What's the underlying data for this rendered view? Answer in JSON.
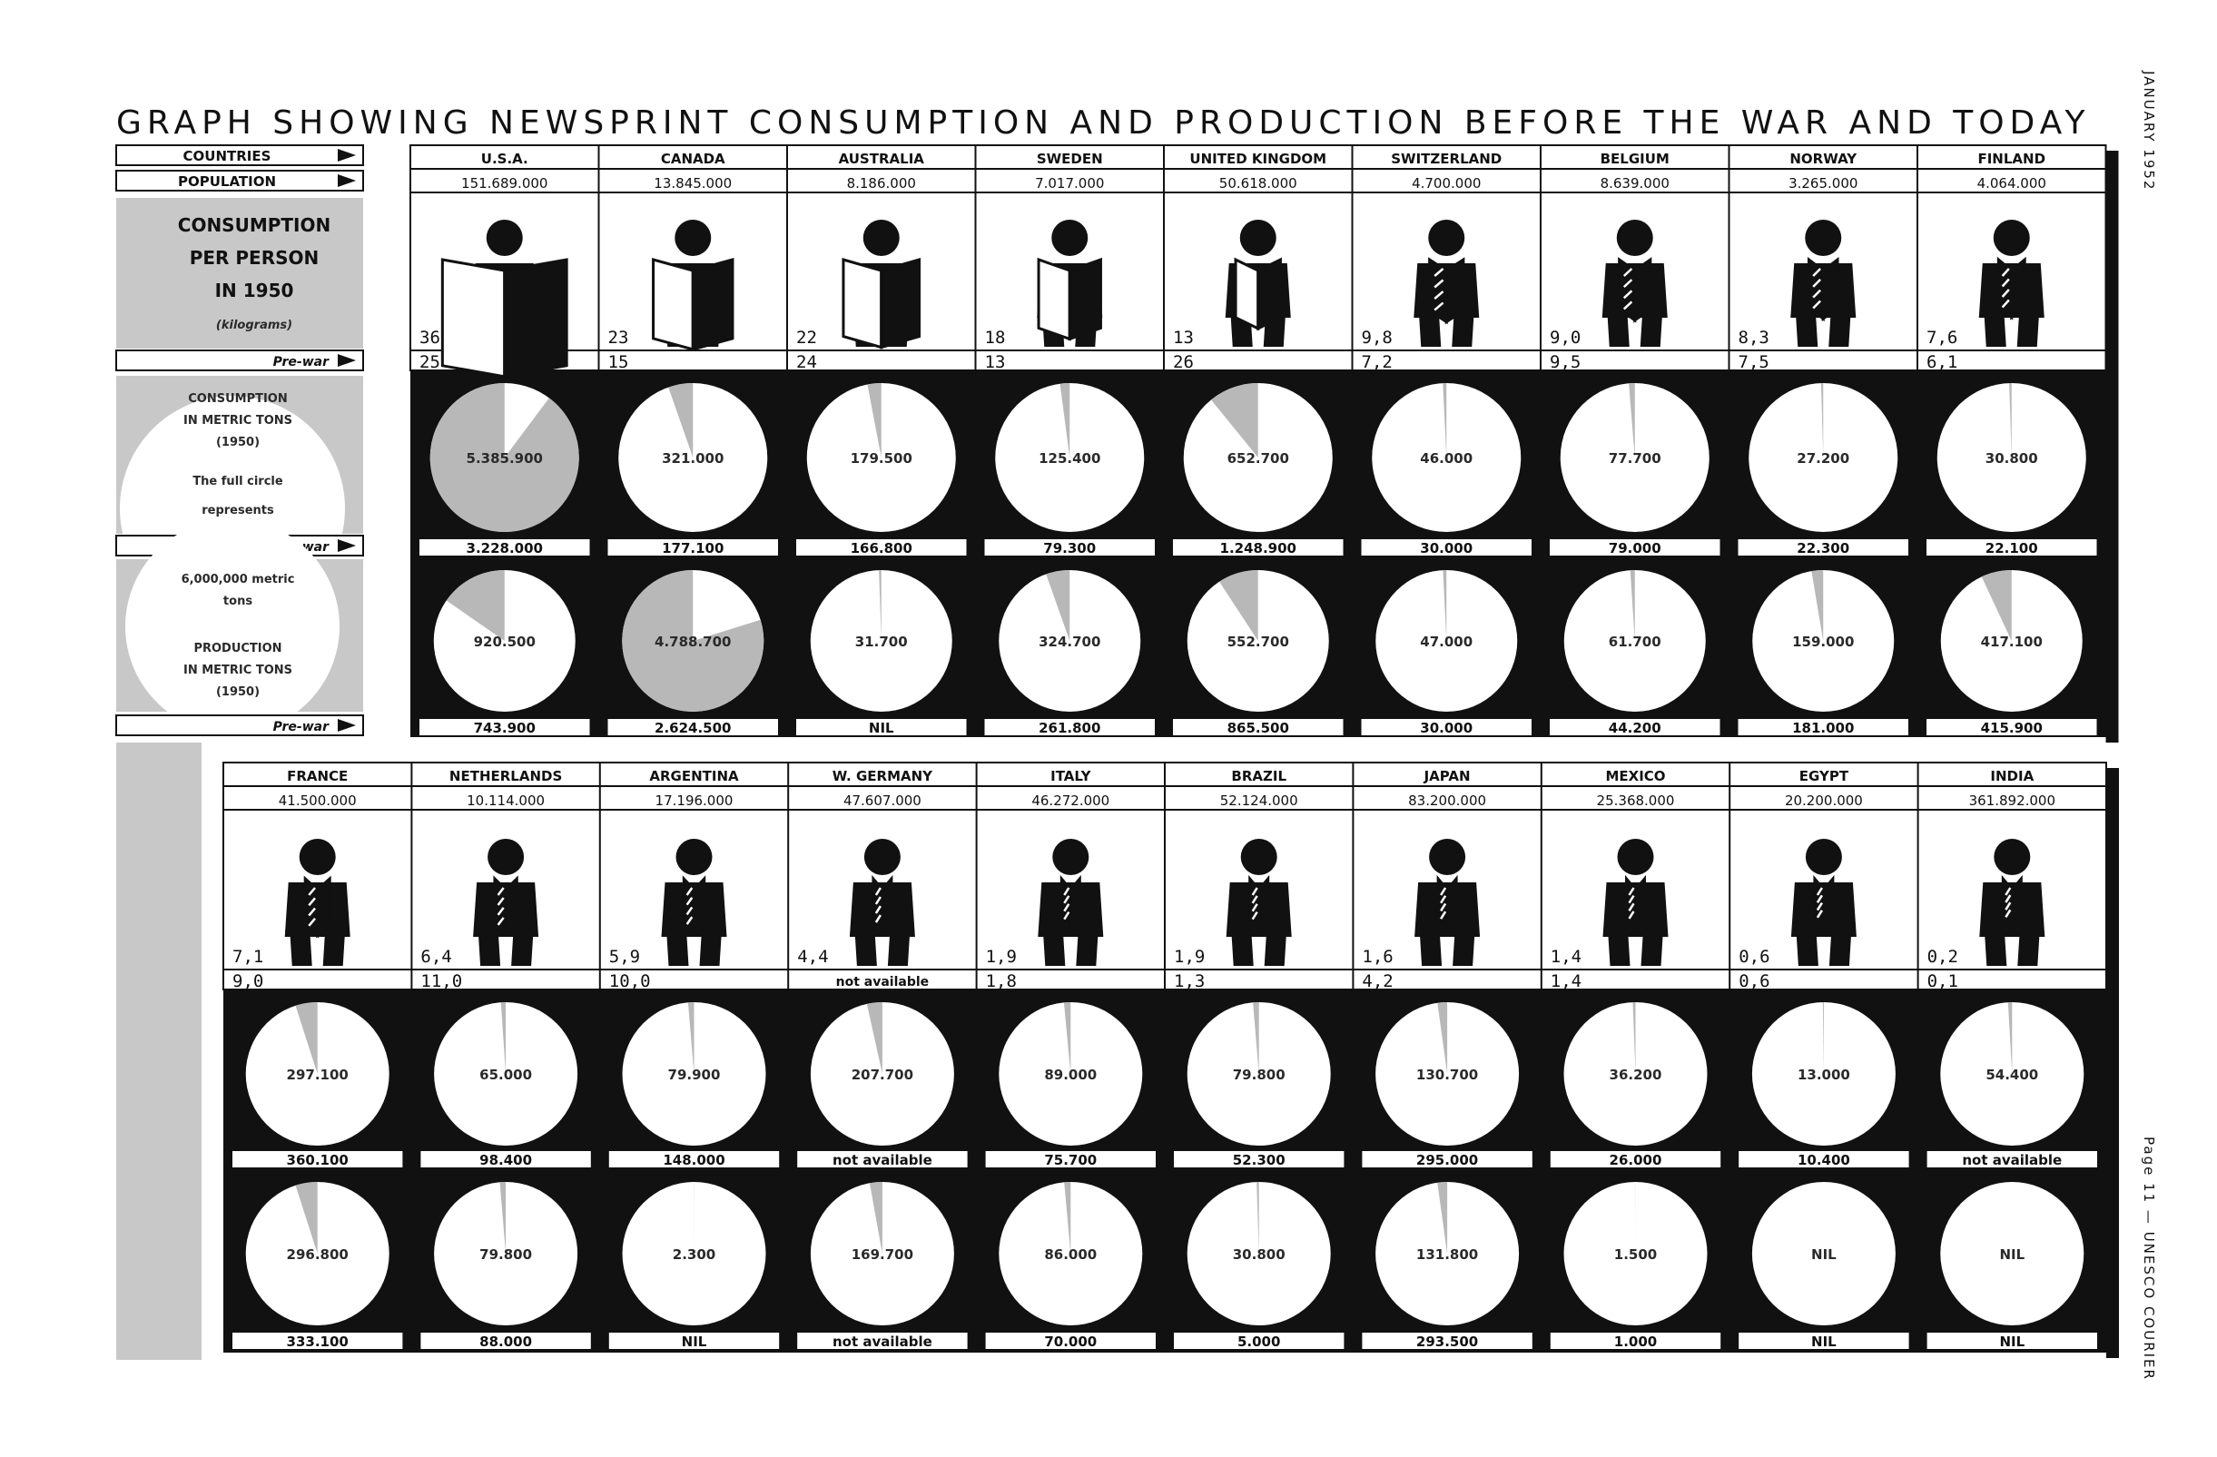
{
  "page": {
    "title": "GRAPH SHOWING NEWSPRINT CONSUMPTION AND PRODUCTION BEFORE THE WAR AND TODAY",
    "side_top": "JANUARY 1952",
    "side_bottom": "Page 11 — UNESCO COURIER"
  },
  "legend": {
    "countries": "COUNTRIES",
    "population": "POPULATION",
    "consumption_per_person": [
      "CONSUMPTION",
      "PER PERSON",
      "IN 1950"
    ],
    "kilograms": "(kilograms)",
    "prewar": "Pre-war",
    "consumption_tons": [
      "CONSUMPTION",
      "IN METRIC TONS",
      "(1950)"
    ],
    "full_circle": [
      "The full circle",
      "represents",
      "6,000,000 metric",
      "tons"
    ],
    "production_tons": [
      "PRODUCTION",
      "IN METRIC TONS",
      "(1950)"
    ]
  },
  "colors": {
    "ink": "#111111",
    "paper": "#ffffff",
    "pie_fill": "#b8b8b8",
    "legend_grey": "#c8c8c8"
  },
  "chart_data": {
    "type": "pie",
    "title": "GRAPH SHOWING NEWSPRINT CONSUMPTION AND PRODUCTION BEFORE THE WAR AND TODAY",
    "full_circle_tons": 6000000,
    "rows": [
      {
        "countries": [
          {
            "name": "U.S.A.",
            "population": "151.689.000",
            "kg_1950": "36",
            "kg_prewar": "25",
            "consumption": "5.385.900",
            "consumption_value": 5385900,
            "consumption_prewar": "3.228.000",
            "production": "920.500",
            "production_value": 920500,
            "production_prewar": "743.900"
          },
          {
            "name": "CANADA",
            "population": "13.845.000",
            "kg_1950": "23",
            "kg_prewar": "15",
            "consumption": "321.000",
            "consumption_value": 321000,
            "consumption_prewar": "177.100",
            "production": "4.788.700",
            "production_value": 4788700,
            "production_prewar": "2.624.500"
          },
          {
            "name": "AUSTRALIA",
            "population": "8.186.000",
            "kg_1950": "22",
            "kg_prewar": "24",
            "consumption": "179.500",
            "consumption_value": 179500,
            "consumption_prewar": "166.800",
            "production": "31.700",
            "production_value": 31700,
            "production_prewar": "NIL"
          },
          {
            "name": "SWEDEN",
            "population": "7.017.000",
            "kg_1950": "18",
            "kg_prewar": "13",
            "consumption": "125.400",
            "consumption_value": 125400,
            "consumption_prewar": "79.300",
            "production": "324.700",
            "production_value": 324700,
            "production_prewar": "261.800"
          },
          {
            "name": "UNITED KINGDOM",
            "population": "50.618.000",
            "kg_1950": "13",
            "kg_prewar": "26",
            "consumption": "652.700",
            "consumption_value": 652700,
            "consumption_prewar": "1.248.900",
            "production": "552.700",
            "production_value": 552700,
            "production_prewar": "865.500"
          },
          {
            "name": "SWITZERLAND",
            "population": "4.700.000",
            "kg_1950": "9,8",
            "kg_prewar": "7,2",
            "consumption": "46.000",
            "consumption_value": 46000,
            "consumption_prewar": "30.000",
            "production": "47.000",
            "production_value": 47000,
            "production_prewar": "30.000"
          },
          {
            "name": "BELGIUM",
            "population": "8.639.000",
            "kg_1950": "9,0",
            "kg_prewar": "9,5",
            "consumption": "77.700",
            "consumption_value": 77700,
            "consumption_prewar": "79.000",
            "production": "61.700",
            "production_value": 61700,
            "production_prewar": "44.200"
          },
          {
            "name": "NORWAY",
            "population": "3.265.000",
            "kg_1950": "8,3",
            "kg_prewar": "7,5",
            "consumption": "27.200",
            "consumption_value": 27200,
            "consumption_prewar": "22.300",
            "production": "159.000",
            "production_value": 159000,
            "production_prewar": "181.000"
          },
          {
            "name": "FINLAND",
            "population": "4.064.000",
            "kg_1950": "7,6",
            "kg_prewar": "6,1",
            "consumption": "30.800",
            "consumption_value": 30800,
            "consumption_prewar": "22.100",
            "production": "417.100",
            "production_value": 417100,
            "production_prewar": "415.900"
          }
        ]
      },
      {
        "countries": [
          {
            "name": "FRANCE",
            "population": "41.500.000",
            "kg_1950": "7,1",
            "kg_prewar": "9,0",
            "consumption": "297.100",
            "consumption_value": 297100,
            "consumption_prewar": "360.100",
            "production": "296.800",
            "production_value": 296800,
            "production_prewar": "333.100"
          },
          {
            "name": "NETHERLANDS",
            "population": "10.114.000",
            "kg_1950": "6,4",
            "kg_prewar": "11,0",
            "consumption": "65.000",
            "consumption_value": 65000,
            "consumption_prewar": "98.400",
            "production": "79.800",
            "production_value": 79800,
            "production_prewar": "88.000"
          },
          {
            "name": "ARGENTINA",
            "population": "17.196.000",
            "kg_1950": "5,9",
            "kg_prewar": "10,0",
            "consumption": "79.900",
            "consumption_value": 79900,
            "consumption_prewar": "148.000",
            "production": "2.300",
            "production_value": 2300,
            "production_prewar": "NIL"
          },
          {
            "name": "W. GERMANY",
            "population": "47.607.000",
            "kg_1950": "4,4",
            "kg_prewar": "not available",
            "consumption": "207.700",
            "consumption_value": 207700,
            "consumption_prewar": "not available",
            "production": "169.700",
            "production_value": 169700,
            "production_prewar": "not available"
          },
          {
            "name": "ITALY",
            "population": "46.272.000",
            "kg_1950": "1,9",
            "kg_prewar": "1,8",
            "consumption": "89.000",
            "consumption_value": 89000,
            "consumption_prewar": "75.700",
            "production": "86.000",
            "production_value": 86000,
            "production_prewar": "70.000"
          },
          {
            "name": "BRAZIL",
            "population": "52.124.000",
            "kg_1950": "1,9",
            "kg_prewar": "1,3",
            "consumption": "79.800",
            "consumption_value": 79800,
            "consumption_prewar": "52.300",
            "production": "30.800",
            "production_value": 30800,
            "production_prewar": "5.000"
          },
          {
            "name": "JAPAN",
            "population": "83.200.000",
            "kg_1950": "1,6",
            "kg_prewar": "4,2",
            "consumption": "130.700",
            "consumption_value": 130700,
            "consumption_prewar": "295.000",
            "production": "131.800",
            "production_value": 131800,
            "production_prewar": "293.500"
          },
          {
            "name": "MEXICO",
            "population": "25.368.000",
            "kg_1950": "1,4",
            "kg_prewar": "1,4",
            "consumption": "36.200",
            "consumption_value": 36200,
            "consumption_prewar": "26.000",
            "production": "1.500",
            "production_value": 1500,
            "production_prewar": "1.000"
          },
          {
            "name": "EGYPT",
            "population": "20.200.000",
            "kg_1950": "0,6",
            "kg_prewar": "0,6",
            "consumption": "13.000",
            "consumption_value": 13000,
            "consumption_prewar": "10.400",
            "production": "NIL",
            "production_value": 0,
            "production_prewar": "NIL"
          },
          {
            "name": "INDIA",
            "population": "361.892.000",
            "kg_1950": "0,2",
            "kg_prewar": "0,1",
            "consumption": "54.400",
            "consumption_value": 54400,
            "consumption_prewar": "not available",
            "production": "NIL",
            "production_value": 0,
            "production_prewar": "NIL"
          }
        ]
      }
    ]
  }
}
